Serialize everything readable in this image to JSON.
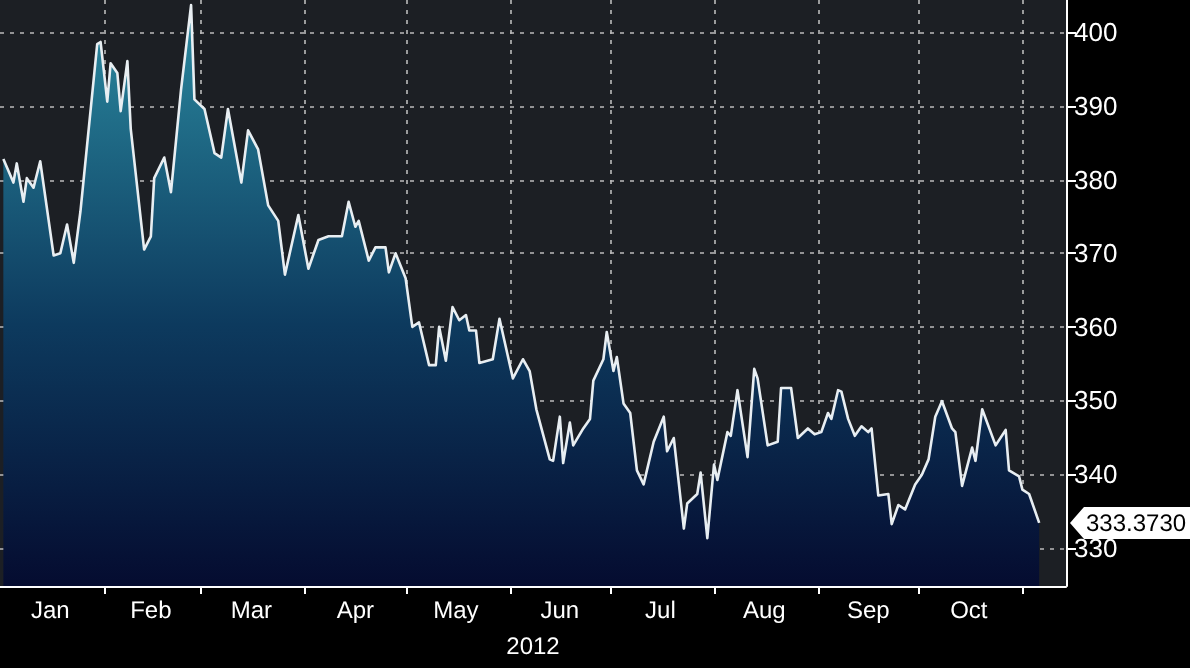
{
  "chart_data": {
    "type": "area",
    "xlabel": "2012",
    "x": [
      "2012-01-02",
      "2012-01-05",
      "2012-01-06",
      "2012-01-08",
      "2012-01-09",
      "2012-01-11",
      "2012-01-13",
      "2012-01-17",
      "2012-01-19",
      "2012-01-21",
      "2012-01-23",
      "2012-01-25",
      "2012-01-30",
      "2012-01-31",
      "2012-02-02",
      "2012-02-03",
      "2012-02-05",
      "2012-02-06",
      "2012-02-08",
      "2012-02-09",
      "2012-02-13",
      "2012-02-15",
      "2012-02-16",
      "2012-02-19",
      "2012-02-21",
      "2012-02-24",
      "2012-02-27",
      "2012-02-28",
      "2012-03-02",
      "2012-03-05",
      "2012-03-07",
      "2012-03-09",
      "2012-03-13",
      "2012-03-15",
      "2012-03-18",
      "2012-03-21",
      "2012-03-24",
      "2012-03-26",
      "2012-03-30",
      "2012-04-02",
      "2012-04-05",
      "2012-04-08",
      "2012-04-12",
      "2012-04-14",
      "2012-04-16",
      "2012-04-17",
      "2012-04-20",
      "2012-04-22",
      "2012-04-25",
      "2012-04-26",
      "2012-04-28",
      "2012-05-01",
      "2012-05-03",
      "2012-05-05",
      "2012-05-08",
      "2012-05-10",
      "2012-05-11",
      "2012-05-13",
      "2012-05-15",
      "2012-05-17",
      "2012-05-19",
      "2012-05-20",
      "2012-05-22",
      "2012-05-23",
      "2012-05-27",
      "2012-05-29",
      "2012-06-02",
      "2012-06-05",
      "2012-06-07",
      "2012-06-09",
      "2012-06-13",
      "2012-06-14",
      "2012-06-16",
      "2012-06-17",
      "2012-06-19",
      "2012-06-20",
      "2012-06-23",
      "2012-06-25",
      "2012-06-26",
      "2012-06-29",
      "2012-06-30",
      "2012-07-02",
      "2012-07-03",
      "2012-07-05",
      "2012-07-07",
      "2012-07-09",
      "2012-07-11",
      "2012-07-14",
      "2012-07-17",
      "2012-07-18",
      "2012-07-20",
      "2012-07-23",
      "2012-07-24",
      "2012-07-27",
      "2012-07-28",
      "2012-07-30",
      "2012-08-01",
      "2012-08-02",
      "2012-08-05",
      "2012-08-06",
      "2012-08-08",
      "2012-08-11",
      "2012-08-13",
      "2012-08-14",
      "2012-08-17",
      "2012-08-20",
      "2012-08-21",
      "2012-08-24",
      "2012-08-26",
      "2012-08-29",
      "2012-08-31",
      "2012-09-02",
      "2012-09-04",
      "2012-09-05",
      "2012-09-07",
      "2012-09-08",
      "2012-09-10",
      "2012-09-12",
      "2012-09-14",
      "2012-09-16",
      "2012-09-17",
      "2012-09-19",
      "2012-09-22",
      "2012-09-23",
      "2012-09-25",
      "2012-09-27",
      "2012-09-30",
      "2012-10-02",
      "2012-10-04",
      "2012-10-06",
      "2012-10-08",
      "2012-10-11",
      "2012-10-12",
      "2012-10-14",
      "2012-10-17",
      "2012-10-18",
      "2012-10-20",
      "2012-10-24",
      "2012-10-27",
      "2012-10-28",
      "2012-10-31",
      "2012-11-01",
      "2012-11-03",
      "2012-11-06"
    ],
    "series": [
      {
        "color": "#e8eef2",
        "values": [
          382.8,
          379.6,
          382.2,
          377,
          380.2,
          378.9,
          382.5,
          369.7,
          370,
          373.9,
          368.7,
          375.7,
          398.4,
          398.7,
          390.6,
          395.8,
          394.5,
          389.3,
          396.1,
          386.9,
          370.5,
          372.3,
          380.2,
          383,
          378.3,
          392.2,
          403.7,
          390.9,
          389.6,
          383.6,
          383,
          389.6,
          379.6,
          386.7,
          384.1,
          376.5,
          374.4,
          367.1,
          375.2,
          367.9,
          371.8,
          372.3,
          372.3,
          377,
          373.6,
          374.4,
          369,
          370.8,
          370.8,
          367.4,
          370,
          366.6,
          360,
          360.6,
          354.8,
          354.8,
          360,
          355.4,
          362.7,
          360.9,
          361.6,
          359.5,
          359.5,
          355.1,
          355.6,
          361.1,
          353,
          355.6,
          354,
          348.8,
          342,
          341.8,
          347.8,
          341.5,
          347,
          343.9,
          346.2,
          347.5,
          352.7,
          355.6,
          359.3,
          354,
          355.9,
          349.6,
          348.3,
          340.5,
          338.6,
          344.4,
          347.8,
          343.1,
          344.9,
          332.6,
          336,
          337.3,
          340.2,
          331.3,
          341.3,
          339.2,
          345.7,
          345.2,
          351.4,
          342.3,
          354.3,
          353,
          343.9,
          344.4,
          351.7,
          351.7,
          344.9,
          346.2,
          345.4,
          345.7,
          348.3,
          347.5,
          351.4,
          351.2,
          347.5,
          345.2,
          346.5,
          345.7,
          346.2,
          337.1,
          337.3,
          333.2,
          335.8,
          335.2,
          338.6,
          339.9,
          342,
          347.8,
          349.9,
          346.2,
          345.7,
          338.4,
          343.6,
          341.8,
          348.8,
          343.9,
          346,
          340.5,
          339.7,
          337.9,
          337.3,
          333.373
        ]
      }
    ],
    "xlim": [
      "2012-01-01",
      "2012-11-14"
    ],
    "xticks": [
      {
        "value": "2012-01-16",
        "label": "Jan"
      },
      {
        "value": "2012-02-01",
        "label": null
      },
      {
        "value": "2012-02-15",
        "label": "Feb"
      },
      {
        "value": "2012-03-01",
        "label": null
      },
      {
        "value": "2012-03-16",
        "label": "Mar"
      },
      {
        "value": "2012-04-01",
        "label": null
      },
      {
        "value": "2012-04-16",
        "label": "Apr"
      },
      {
        "value": "2012-05-01",
        "label": null
      },
      {
        "value": "2012-05-16",
        "label": "May"
      },
      {
        "value": "2012-06-01",
        "label": null
      },
      {
        "value": "2012-06-16",
        "label": "Jun"
      },
      {
        "value": "2012-07-01",
        "label": null
      },
      {
        "value": "2012-07-16",
        "label": "Jul"
      },
      {
        "value": "2012-08-01",
        "label": null
      },
      {
        "value": "2012-08-16",
        "label": "Aug"
      },
      {
        "value": "2012-09-01",
        "label": null
      },
      {
        "value": "2012-09-16",
        "label": "Sep"
      },
      {
        "value": "2012-10-01",
        "label": null
      },
      {
        "value": "2012-10-16",
        "label": "Oct"
      },
      {
        "value": "2012-11-01",
        "label": null
      }
    ],
    "ylim": [
      324.8,
      404.4
    ],
    "yticks": [
      330,
      340,
      350,
      360,
      370,
      380,
      390,
      400
    ],
    "grid": true,
    "annotations": [
      {
        "text": "333.3730",
        "x": "2012-11-06",
        "y": 333.373
      }
    ]
  }
}
